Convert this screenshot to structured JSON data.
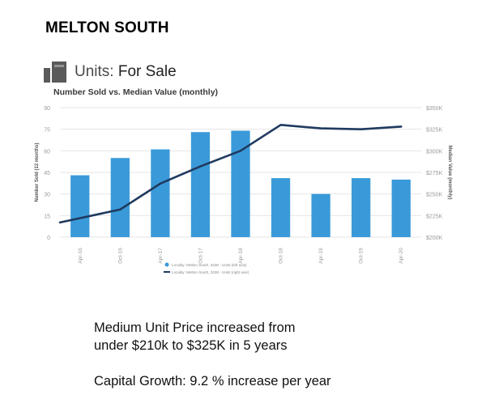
{
  "page": {
    "heading": "MELTON SOUTH",
    "card_title_prefix": "Units:",
    "card_title_suffix": "For Sale",
    "captions": [
      "Medium Unit Price increased from",
      "under $210k to $325K in 5 years",
      "Capital Growth: 9.2 % increase per year"
    ]
  },
  "colors": {
    "bar": "#3a9ad9",
    "line": "#1f3a5f",
    "grid": "#e6e6e6",
    "tick": "#9a9a9a",
    "icon": "#5a5a5a"
  },
  "chart_data": {
    "type": "bar",
    "title": "Number Sold vs. Median Value (monthly)",
    "categories": [
      "Apr-16",
      "Oct-16",
      "Apr-17",
      "Oct-17",
      "Apr-18",
      "Oct-18",
      "Apr-19",
      "Oct-19",
      "Apr-20"
    ],
    "ylabel": "Number Sold (12 months)",
    "y2label": "Median Value (monthly)",
    "ylim": [
      0,
      90
    ],
    "yticks": [
      0,
      15,
      30,
      45,
      60,
      75,
      90
    ],
    "y2lim": [
      200000,
      350000
    ],
    "y2ticks": [
      "$200K",
      "$225K",
      "$250K",
      "$275K",
      "$300K",
      "$325K",
      "$350K"
    ],
    "grid": true,
    "legend_placement": "bottom",
    "series": [
      {
        "name": "Locality: Melton South, 3338 - Units (left axis)",
        "type": "bar",
        "axis": "left",
        "values": [
          43,
          55,
          61,
          73,
          74,
          41,
          30,
          41,
          40
        ]
      },
      {
        "name": "Locality: Melton South, 3338 - Units (right axis)",
        "type": "line",
        "axis": "right",
        "x": [
          "Apr-16 (start)",
          "Oct-16",
          "Apr-17",
          "Oct-17",
          "Apr-18",
          "Oct-18",
          "Apr-19",
          "Oct-19",
          "Apr-20"
        ],
        "values": [
          217000,
          232000,
          262000,
          282000,
          300000,
          330000,
          326000,
          325000,
          328000
        ]
      }
    ]
  }
}
